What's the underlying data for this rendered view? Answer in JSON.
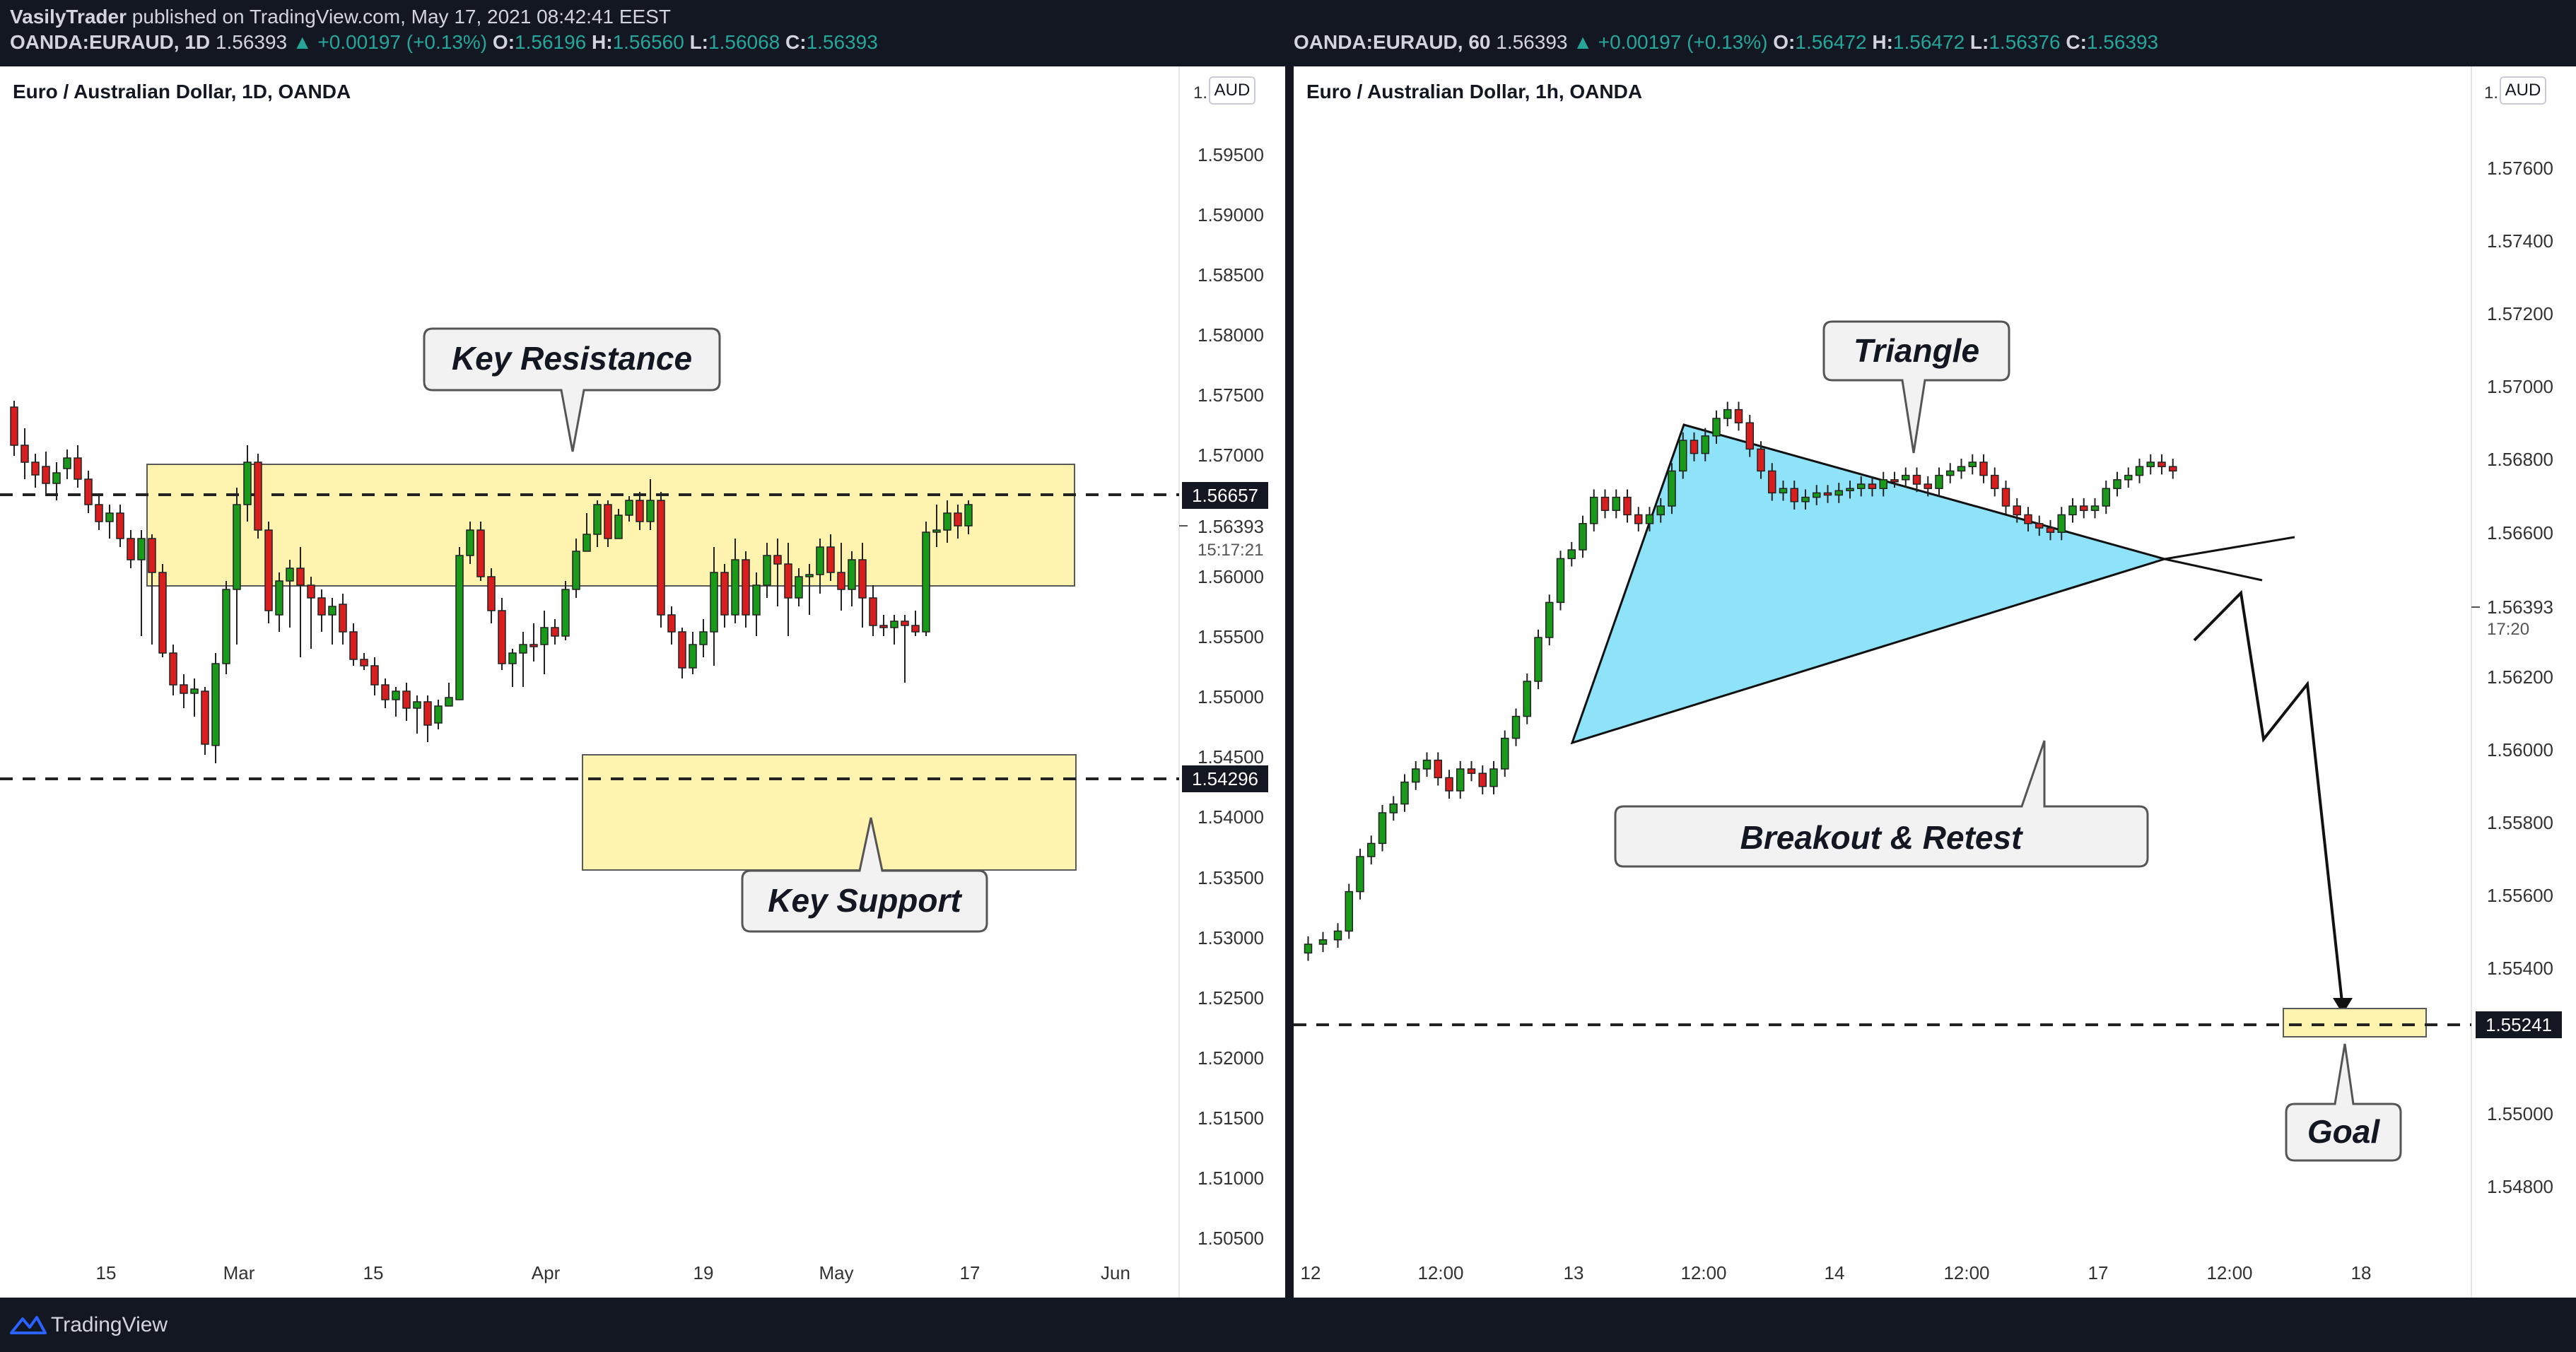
{
  "header": {
    "publisher": "VasilyTrader",
    "published_text": "published on TradingView.com, May 17, 2021 08:42:41 EEST"
  },
  "left": {
    "ohlc": {
      "symbol": "OANDA:EURAUD, 1D",
      "price": "1.56393",
      "change": "▲ +0.00197 (+0.13%)",
      "O": "1.56196",
      "H": "1.56560",
      "L": "1.56068",
      "C": "1.56393"
    },
    "title": "Euro / Australian Dollar, 1D, OANDA",
    "currency": "AUD",
    "price_labels": [
      "1.59500",
      "1.59000",
      "1.58500",
      "1.58000",
      "1.57500",
      "1.57000",
      "1.56000",
      "1.55500",
      "1.55000",
      "1.54500",
      "1.54000",
      "1.53500",
      "1.53000",
      "1.52500",
      "1.52000",
      "1.51500",
      "1.51000",
      "1.50500"
    ],
    "price_top_partial": "1.",
    "badge_resistance": "1.56657",
    "badge_support": "1.54296",
    "last_price": "1.56393",
    "countdown": "15:17:21",
    "time_labels": [
      "15",
      "Mar",
      "15",
      "Apr",
      "19",
      "May",
      "17",
      "Jun"
    ],
    "callout_resistance": "Key Resistance",
    "callout_support": "Key Support"
  },
  "right": {
    "ohlc": {
      "symbol": "OANDA:EURAUD, 60",
      "price": "1.56393",
      "change": "▲ +0.00197 (+0.13%)",
      "O": "1.56472",
      "H": "1.56472",
      "L": "1.56376",
      "C": "1.56393"
    },
    "title": "Euro / Australian Dollar, 1h, OANDA",
    "currency": "AUD",
    "price_labels": [
      "1.57600",
      "1.57400",
      "1.57200",
      "1.57000",
      "1.56800",
      "1.56600",
      "1.56200",
      "1.56000",
      "1.55800",
      "1.55600",
      "1.55400",
      "1.55000",
      "1.54800"
    ],
    "price_top_partial": "1.",
    "last_price": "1.56393",
    "countdown": "17:20",
    "goal_badge": "1.55241",
    "time_labels": [
      "12",
      "12:00",
      "13",
      "12:00",
      "14",
      "12:00",
      "17",
      "12:00",
      "18"
    ],
    "callout_triangle": "Triangle",
    "callout_breakout": "Breakout & Retest",
    "callout_goal": "Goal"
  },
  "footer": {
    "brand": "TradingView"
  },
  "colors": {
    "bull": "#1a9a1a",
    "bear": "#d81e1e",
    "zone": "#fff3b0",
    "triangle": "#8ee3f8",
    "bg": "#131722"
  }
}
